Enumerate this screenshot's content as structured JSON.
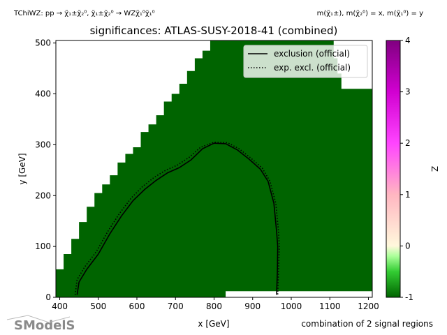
{
  "chart_data": {
    "type": "heatmap",
    "title": "significances: ATLAS-SUSY-2018-41 (combined)",
    "top_left_text": "TChiWZ: pp → χ̃₁±χ̃₂⁰, χ̃₁±χ̃₂⁰ → WZχ̃₁⁰χ̃₁⁰",
    "top_right_text": "m(χ̃₁±), m(χ̃₂⁰) = x, m(χ̃₁⁰) = y",
    "xlabel": "x [GeV]",
    "ylabel": "y [GeV]",
    "bottom_right_text": "combination of 2 signal regions",
    "xlim": [
      390,
      1210
    ],
    "ylim": [
      0,
      505
    ],
    "x_ticks": [
      400,
      500,
      600,
      700,
      800,
      900,
      1000,
      1100,
      1200
    ],
    "y_ticks": [
      0,
      100,
      200,
      300,
      400,
      500
    ],
    "colorbar": {
      "label": "Z",
      "range": [
        -1,
        4
      ],
      "ticks": [
        -1,
        0,
        1,
        2,
        3,
        4
      ],
      "stops": [
        {
          "value": -1,
          "color": "#006400"
        },
        {
          "value": -0.5,
          "color": "#33cc33"
        },
        {
          "value": -0.2,
          "color": "#aaff99"
        },
        {
          "value": 0,
          "color": "#fff8dc"
        },
        {
          "value": 1,
          "color": "#ffb6c1"
        },
        {
          "value": 2,
          "color": "#ff44ff"
        },
        {
          "value": 3,
          "color": "#d100d1"
        },
        {
          "value": 4,
          "color": "#800080"
        }
      ]
    },
    "field_color": "#006400",
    "coverage_upper_edge": [
      {
        "x": 390,
        "y": 55
      },
      {
        "x": 410,
        "y": 85
      },
      {
        "x": 430,
        "y": 115
      },
      {
        "x": 450,
        "y": 148
      },
      {
        "x": 470,
        "y": 178
      },
      {
        "x": 490,
        "y": 205
      },
      {
        "x": 510,
        "y": 222
      },
      {
        "x": 530,
        "y": 240
      },
      {
        "x": 550,
        "y": 265
      },
      {
        "x": 570,
        "y": 282
      },
      {
        "x": 590,
        "y": 295
      },
      {
        "x": 610,
        "y": 325
      },
      {
        "x": 630,
        "y": 340
      },
      {
        "x": 650,
        "y": 358
      },
      {
        "x": 670,
        "y": 385
      },
      {
        "x": 690,
        "y": 400
      },
      {
        "x": 710,
        "y": 420
      },
      {
        "x": 730,
        "y": 445
      },
      {
        "x": 750,
        "y": 470
      },
      {
        "x": 770,
        "y": 485
      },
      {
        "x": 790,
        "y": 505
      },
      {
        "x": 1100,
        "y": 505
      },
      {
        "x": 1110,
        "y": 470
      },
      {
        "x": 1120,
        "y": 440
      },
      {
        "x": 1130,
        "y": 410
      },
      {
        "x": 1210,
        "y": 410
      }
    ],
    "missing_region_bottom_right": {
      "x_from": 830,
      "x_to": 1210,
      "y_from": 0,
      "y_to": 12
    },
    "series": [
      {
        "name": "exclusion (official)",
        "style": "solid",
        "points": [
          [
            445,
            5
          ],
          [
            450,
            30
          ],
          [
            470,
            55
          ],
          [
            500,
            85
          ],
          [
            530,
            125
          ],
          [
            560,
            160
          ],
          [
            590,
            190
          ],
          [
            620,
            212
          ],
          [
            650,
            230
          ],
          [
            680,
            245
          ],
          [
            710,
            255
          ],
          [
            740,
            270
          ],
          [
            770,
            292
          ],
          [
            800,
            303
          ],
          [
            830,
            302
          ],
          [
            860,
            290
          ],
          [
            890,
            272
          ],
          [
            920,
            252
          ],
          [
            940,
            228
          ],
          [
            955,
            185
          ],
          [
            962,
            130
          ],
          [
            965,
            100
          ],
          [
            964,
            50
          ],
          [
            962,
            5
          ]
        ]
      },
      {
        "name": "exp. excl. (official)",
        "style": "dotted",
        "points": [
          [
            440,
            5
          ],
          [
            445,
            35
          ],
          [
            465,
            60
          ],
          [
            495,
            90
          ],
          [
            525,
            130
          ],
          [
            555,
            165
          ],
          [
            585,
            195
          ],
          [
            615,
            218
          ],
          [
            645,
            236
          ],
          [
            675,
            250
          ],
          [
            705,
            260
          ],
          [
            735,
            275
          ],
          [
            765,
            295
          ],
          [
            800,
            305
          ],
          [
            835,
            304
          ],
          [
            865,
            292
          ],
          [
            895,
            274
          ],
          [
            925,
            254
          ],
          [
            945,
            228
          ],
          [
            960,
            185
          ],
          [
            967,
            130
          ],
          [
            969,
            100
          ],
          [
            967,
            50
          ],
          [
            965,
            5
          ]
        ]
      }
    ],
    "legend": {
      "position": "top-right",
      "entries": [
        "exclusion (official)",
        "exp. excl. (official)"
      ]
    },
    "logo_text": "SModelS"
  }
}
